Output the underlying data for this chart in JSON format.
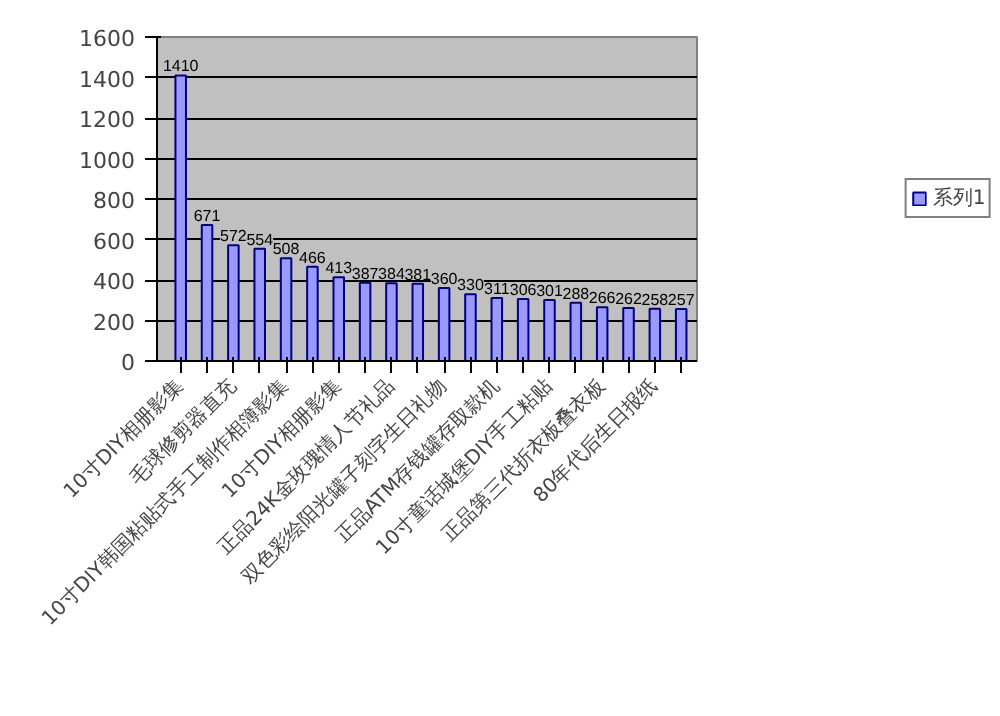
{
  "chart_data": {
    "type": "bar",
    "categories": [
      "10寸DIY相册影集",
      null,
      "毛球修剪器直充",
      null,
      "10寸DIY韩国粘贴式手工制作相簿影集",
      null,
      "10寸DIY相册影集",
      null,
      "正品24K金玫瑰情人节礼品",
      null,
      "双色彩绘阳光罐子刻字生日礼物",
      null,
      "正品ATM存钱罐存取款机",
      null,
      "10寸童话城堡DIY手工粘贴",
      null,
      "正品第三代折衣板叠衣板",
      null,
      "80年代后生日报纸",
      null
    ],
    "series": [
      {
        "name": "系列1",
        "color": "#9999ff",
        "values": [
          1410,
          671,
          572,
          554,
          508,
          466,
          413,
          387,
          384,
          381,
          360,
          330,
          311,
          306,
          301,
          288,
          266,
          262,
          258,
          257
        ]
      }
    ],
    "ylim": [
      0,
      1600
    ],
    "yticks": [
      0,
      200,
      400,
      600,
      800,
      1000,
      1200,
      1400,
      1600
    ],
    "grid": "y",
    "legend": "right",
    "data_labels": true
  }
}
